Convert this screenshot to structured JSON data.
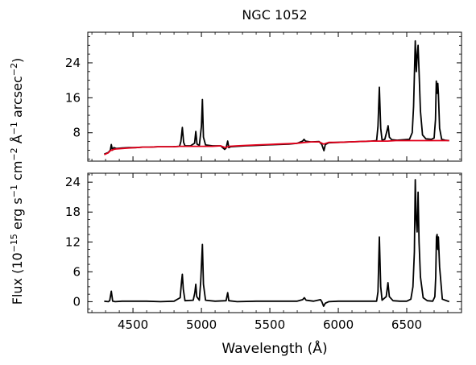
{
  "chart_data": {
    "type": "line",
    "title": "NGC 1052",
    "ylabel": "Flux (10^-15 erg s^-1 cm^-2 Å^-1 arcsec^-2)",
    "xlabel": "Wavelength (Å)",
    "xlim": [
      4170,
      6900
    ],
    "x_ticks": [
      4500,
      5000,
      5500,
      6000,
      6500
    ],
    "x_tick_labels": [
      "4500",
      "5000",
      "5500",
      "6000",
      "6500"
    ],
    "panels": [
      {
        "ylim": [
          1.5,
          31
        ],
        "y_ticks": [
          8,
          16,
          24
        ],
        "y_tick_labels": [
          "8",
          "16",
          "24"
        ],
        "series": [
          {
            "role": "observed",
            "color": "#000000",
            "x": [
              4290,
              4320,
              4335,
              4342,
              4350,
              4360,
              4380,
              4420,
              4470,
              4520,
              4570,
              4620,
              4680,
              4730,
              4790,
              4840,
              4850,
              4861,
              4870,
              4880,
              4920,
              4950,
              4959,
              4968,
              4985,
              5000,
              5007,
              5015,
              5030,
              5080,
              5140,
              5170,
              5180,
              5192,
              5200,
              5215,
              5260,
              5320,
              5400,
              5480,
              5560,
              5640,
              5700,
              5740,
              5750,
              5760,
              5800,
              5860,
              5880,
              5895,
              5905,
              5930,
              6000,
              6080,
              6160,
              6240,
              6280,
              6290,
              6300,
              6310,
              6320,
              6340,
              6355,
              6364,
              6373,
              6390,
              6430,
              6480,
              6520,
              6540,
              6550,
              6562,
              6570,
              6577,
              6583,
              6590,
              6600,
              6615,
              6640,
              6680,
              6700,
              6710,
              6716,
              6722,
              6727,
              6731,
              6740,
              6755,
              6780,
              6810
            ],
            "y": [
              3.1,
              3.5,
              4.0,
              5.3,
              4.0,
              4.6,
              4.4,
              4.5,
              4.6,
              4.6,
              4.7,
              4.7,
              4.8,
              4.8,
              4.8,
              4.9,
              6.0,
              9.2,
              5.8,
              5.0,
              5.0,
              5.6,
              8.3,
              5.4,
              5.1,
              9.5,
              15.6,
              7.0,
              5.2,
              5.0,
              5.0,
              4.2,
              4.5,
              6.1,
              4.6,
              4.8,
              4.9,
              5.0,
              5.1,
              5.2,
              5.3,
              5.4,
              5.6,
              6.1,
              6.5,
              6.1,
              5.9,
              6.0,
              5.3,
              3.9,
              5.3,
              5.7,
              5.8,
              5.9,
              6.0,
              6.1,
              6.2,
              9.5,
              18.4,
              9.0,
              6.3,
              6.5,
              8.4,
              9.6,
              7.0,
              6.4,
              6.3,
              6.4,
              6.5,
              8.0,
              14.0,
              29.0,
              22.0,
              26.0,
              28.0,
              22.0,
              13.0,
              7.5,
              6.6,
              6.5,
              6.8,
              11.0,
              19.8,
              17.0,
              19.3,
              17.0,
              9.0,
              6.5,
              6.3,
              6.2
            ]
          },
          {
            "role": "stellar-model",
            "color": "#e3001b",
            "x": [
              4290,
              4320,
              4335,
              4345,
              4360,
              4380,
              4420,
              4470,
              4520,
              4570,
              4620,
              4680,
              4730,
              4790,
              4840,
              4900,
              4960,
              5020,
              5080,
              5140,
              5175,
              5200,
              5260,
              5320,
              5400,
              5480,
              5560,
              5640,
              5700,
              5760,
              5800,
              5860,
              5893,
              5930,
              6000,
              6080,
              6160,
              6240,
              6300,
              6360,
              6420,
              6480,
              6540,
              6600,
              6660,
              6720,
              6780,
              6810
            ],
            "y": [
              3.0,
              3.4,
              3.9,
              4.0,
              4.2,
              4.3,
              4.4,
              4.5,
              4.6,
              4.7,
              4.7,
              4.8,
              4.8,
              4.8,
              4.9,
              4.9,
              4.9,
              4.9,
              4.9,
              5.0,
              4.6,
              4.9,
              5.0,
              5.1,
              5.2,
              5.3,
              5.4,
              5.5,
              5.6,
              5.8,
              5.9,
              5.9,
              5.4,
              5.8,
              5.8,
              5.9,
              6.0,
              6.1,
              6.1,
              6.1,
              6.2,
              6.2,
              6.2,
              6.2,
              6.2,
              6.2,
              6.2,
              6.2
            ]
          }
        ]
      },
      {
        "ylim": [
          -2.2,
          25.8
        ],
        "y_ticks": [
          0,
          6,
          12,
          18,
          24
        ],
        "y_tick_labels": [
          "0",
          "6",
          "12",
          "18",
          "24"
        ],
        "series": [
          {
            "role": "residual",
            "color": "#000000",
            "x": [
              4290,
              4320,
              4330,
              4342,
              4352,
              4370,
              4420,
              4500,
              4600,
              4700,
              4800,
              4845,
              4855,
              4861,
              4868,
              4880,
              4940,
              4952,
              4959,
              4966,
              4985,
              4995,
              5007,
              5015,
              5030,
              5100,
              5180,
              5192,
              5200,
              5260,
              5400,
              5550,
              5700,
              5740,
              5752,
              5765,
              5820,
              5870,
              5880,
              5893,
              5905,
              5930,
              6000,
              6100,
              6200,
              6280,
              6290,
              6300,
              6310,
              6320,
              6350,
              6363,
              6373,
              6400,
              6450,
              6500,
              6530,
              6545,
              6556,
              6562,
              6568,
              6576,
              6583,
              6590,
              6600,
              6620,
              6650,
              6690,
              6705,
              6712,
              6717,
              6722,
              6727,
              6731,
              6740,
              6760,
              6810
            ],
            "y": [
              0.1,
              0.0,
              0.2,
              2.1,
              0.1,
              0.0,
              0.1,
              0.1,
              0.1,
              0.0,
              0.1,
              0.8,
              4.0,
              5.5,
              2.5,
              0.2,
              0.3,
              1.8,
              3.5,
              1.0,
              0.3,
              4.0,
              11.5,
              3.5,
              0.3,
              0.1,
              0.2,
              1.8,
              0.2,
              0.0,
              0.1,
              0.1,
              0.1,
              0.4,
              0.8,
              0.3,
              0.1,
              0.4,
              0.0,
              -0.9,
              -0.3,
              0.0,
              0.1,
              0.1,
              0.1,
              0.1,
              2.0,
              13.0,
              3.0,
              0.3,
              1.0,
              3.8,
              1.0,
              0.2,
              0.1,
              0.1,
              0.5,
              3.0,
              10.0,
              24.5,
              17.0,
              14.0,
              22.0,
              12.0,
              5.0,
              0.8,
              0.2,
              0.1,
              1.0,
              5.0,
              13.0,
              13.5,
              10.5,
              13.0,
              7.0,
              0.5,
              0.0
            ]
          }
        ]
      }
    ]
  }
}
